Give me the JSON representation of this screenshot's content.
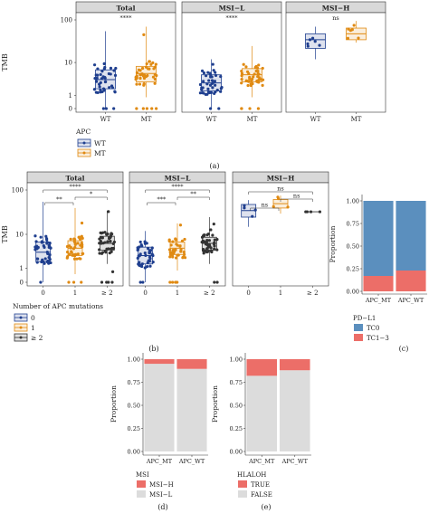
{
  "panel_labels": {
    "a": "(a)",
    "b": "(b)",
    "c": "(c)",
    "d": "(d)",
    "e": "(e)"
  },
  "colors": {
    "wt": "#1f3f8f",
    "mt": "#e08a12",
    "two": "#333333",
    "tc0": "#5b8fbe",
    "tc13": "#ec6e68",
    "msih": "#ec6e68",
    "msil": "#dcdcdc",
    "true": "#ec6e68",
    "false": "#dcdcdc",
    "strip": "#d9d9d9"
  },
  "chart_data": [
    {
      "id": "a",
      "type": "box",
      "ylabel": "TMB",
      "yticks": [
        "0",
        "1",
        "10",
        "100"
      ],
      "ylog": true,
      "facets": [
        {
          "title": "Total",
          "categories": [
            "WT",
            "MT"
          ],
          "sig": "****",
          "boxes": [
            {
              "q1": 1.8,
              "median": 3.5,
              "q3": 6.5,
              "wlo": 0,
              "whi": 55
            },
            {
              "q1": 3,
              "median": 5.2,
              "q3": 8,
              "wlo": 0.8,
              "whi": 70
            }
          ]
        },
        {
          "title": "MSI−L",
          "categories": [
            "WT",
            "MT"
          ],
          "sig": "****",
          "boxes": [
            {
              "q1": 1.5,
              "median": 2.8,
              "q3": 4.8,
              "wlo": 0,
              "whi": 12
            },
            {
              "q1": 3,
              "median": 4.8,
              "q3": 7,
              "wlo": 0.8,
              "whi": 25
            }
          ]
        },
        {
          "title": "MSI−H",
          "categories": [
            "WT",
            "MT"
          ],
          "sig": "ns",
          "boxes": [
            {
              "q1": 22,
              "median": 35,
              "q3": 48,
              "wlo": 12,
              "whi": 70
            },
            {
              "q1": 35,
              "median": 48,
              "q3": 65,
              "wlo": 30,
              "whi": 95
            }
          ]
        }
      ],
      "legend": {
        "title": "APC",
        "items": [
          "WT",
          "MT"
        ]
      }
    },
    {
      "id": "b",
      "type": "box",
      "ylabel": "TMB",
      "yticks": [
        "0",
        "1",
        "10",
        "100"
      ],
      "ylog": true,
      "facets": [
        {
          "title": "Total",
          "categories": [
            "0",
            "1",
            "≥ 2"
          ],
          "sigs": [
            "**",
            "*",
            "****"
          ],
          "boxes": [
            {
              "q1": 1.8,
              "median": 3.5,
              "q3": 6.5,
              "wlo": 0,
              "whi": 55
            },
            {
              "q1": 2.8,
              "median": 4.5,
              "q3": 7,
              "wlo": 0.5,
              "whi": 40
            },
            {
              "q1": 4,
              "median": 6,
              "q3": 9,
              "wlo": 1.5,
              "whi": 35
            }
          ]
        },
        {
          "title": "MSI−L",
          "categories": [
            "0",
            "1",
            "≥ 2"
          ],
          "sigs": [
            "***",
            "**",
            "****"
          ],
          "boxes": [
            {
              "q1": 1.5,
              "median": 2.8,
              "q3": 4.8,
              "wlo": 0,
              "whi": 12
            },
            {
              "q1": 3,
              "median": 4.5,
              "q3": 6.5,
              "wlo": 0.8,
              "whi": 18
            },
            {
              "q1": 4,
              "median": 6,
              "q3": 8.5,
              "wlo": 1.5,
              "whi": 25
            }
          ]
        },
        {
          "title": "MSI−H",
          "categories": [
            "0",
            "1",
            "≥ 2"
          ],
          "sigs": [
            "ns",
            "ns",
            "ns"
          ],
          "boxes": [
            {
              "q1": 25,
              "median": 35,
              "q3": 48,
              "wlo": 15,
              "whi": 60
            },
            {
              "q1": 40,
              "median": 50,
              "q3": 62,
              "wlo": 30,
              "whi": 75
            },
            {
              "q1": 33,
              "median": 33,
              "q3": 33,
              "wlo": 33,
              "whi": 33
            }
          ]
        }
      ],
      "legend": {
        "title": "Number of APC mutations",
        "items": [
          "0",
          "1",
          "≥ 2"
        ]
      }
    },
    {
      "id": "c",
      "type": "bar",
      "stacked": true,
      "ylabel": "Proportion",
      "yticks": [
        "0.00",
        "0.25",
        "0.50",
        "0.75",
        "1.00"
      ],
      "ylim": [
        0,
        1
      ],
      "categories": [
        "APC_MT",
        "APC_WT"
      ],
      "series": [
        {
          "name": "TC1−3",
          "values": [
            0.17,
            0.23
          ]
        },
        {
          "name": "TC0",
          "values": [
            0.83,
            0.77
          ]
        }
      ],
      "legend": {
        "title": "PD−L1",
        "items": [
          "TC0",
          "TC1−3"
        ]
      }
    },
    {
      "id": "d",
      "type": "bar",
      "stacked": true,
      "ylabel": "Proportion",
      "yticks": [
        "0.00",
        "0.25",
        "0.50",
        "0.75",
        "1.00"
      ],
      "ylim": [
        0,
        1
      ],
      "categories": [
        "APC_MT",
        "APC_WT"
      ],
      "series": [
        {
          "name": "MSI−L",
          "values": [
            0.95,
            0.895
          ]
        },
        {
          "name": "MSI−H",
          "values": [
            0.05,
            0.105
          ]
        }
      ],
      "legend": {
        "title": "MSI",
        "items": [
          "MSI−H",
          "MSI−L"
        ]
      }
    },
    {
      "id": "e",
      "type": "bar",
      "stacked": true,
      "ylabel": "Proportion",
      "yticks": [
        "0.00",
        "0.25",
        "0.50",
        "0.75",
        "1.00"
      ],
      "ylim": [
        0,
        1
      ],
      "categories": [
        "APC_MT",
        "APC_WT"
      ],
      "series": [
        {
          "name": "FALSE",
          "values": [
            0.82,
            0.88
          ]
        },
        {
          "name": "TRUE",
          "values": [
            0.18,
            0.12
          ]
        }
      ],
      "legend": {
        "title": "HLALOH",
        "items": [
          "TRUE",
          "FALSE"
        ]
      }
    }
  ]
}
